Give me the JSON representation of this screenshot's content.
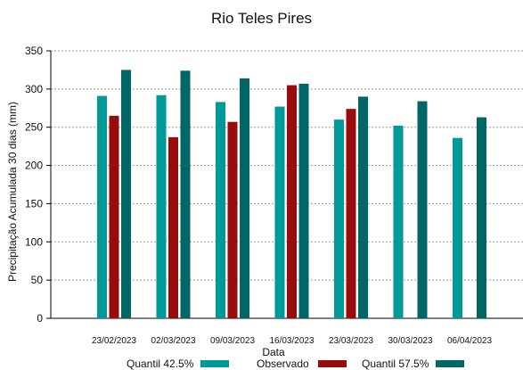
{
  "chart_data": {
    "type": "bar",
    "title": "Rio Teles Pires",
    "xlabel": "Data",
    "ylabel": "Precipitação Acumulada 30 dias (mm)",
    "ylim": [
      0,
      350
    ],
    "yticks": [
      0,
      50,
      100,
      150,
      200,
      250,
      300,
      350
    ],
    "grid": true,
    "legend_position": "bottom",
    "categories": [
      "23/02/2023",
      "02/03/2023",
      "09/03/2023",
      "16/03/2023",
      "23/03/2023",
      "30/03/2023",
      "06/04/2023"
    ],
    "series": [
      {
        "name": "Quantil 42.5%",
        "color": "#009999",
        "values": [
          291,
          292,
          283,
          277,
          260,
          252,
          236
        ]
      },
      {
        "name": "Observado",
        "color": "#990c0c",
        "values": [
          265,
          237,
          257,
          305,
          274,
          null,
          null
        ]
      },
      {
        "name": "Quantil 57.5%",
        "color": "#006666",
        "values": [
          325,
          324,
          314,
          307,
          290,
          284,
          263
        ]
      }
    ]
  }
}
